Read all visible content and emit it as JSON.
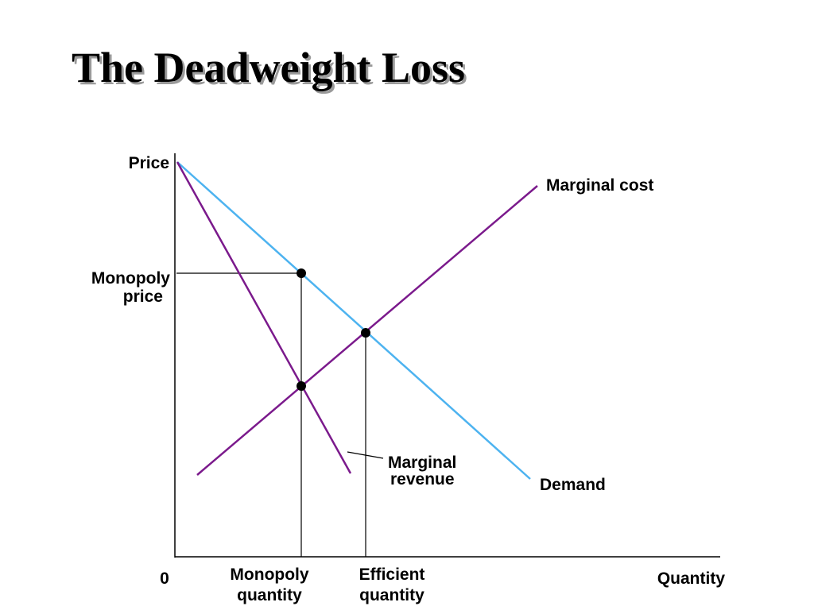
{
  "title": "The Deadweight Loss",
  "axes": {
    "y_label": "Price",
    "x_label": "Quantity",
    "origin": "0"
  },
  "curves": {
    "marginal_cost": "Marginal cost",
    "demand": "Demand",
    "marginal_revenue_line1": "Marginal",
    "marginal_revenue_line2": "revenue"
  },
  "markers": {
    "monopoly_price_line1": "Monopoly",
    "monopoly_price_line2": "price",
    "monopoly_quantity_line1": "Monopoly",
    "monopoly_quantity_line2": "quantity",
    "efficient_quantity_line1": "Efficient",
    "efficient_quantity_line2": "quantity"
  },
  "colors": {
    "demand": "#4db3f0",
    "marginal_cost": "#7b1a8c",
    "marginal_revenue": "#7b1a8c",
    "axes": "#000000",
    "points": "#000000"
  }
}
